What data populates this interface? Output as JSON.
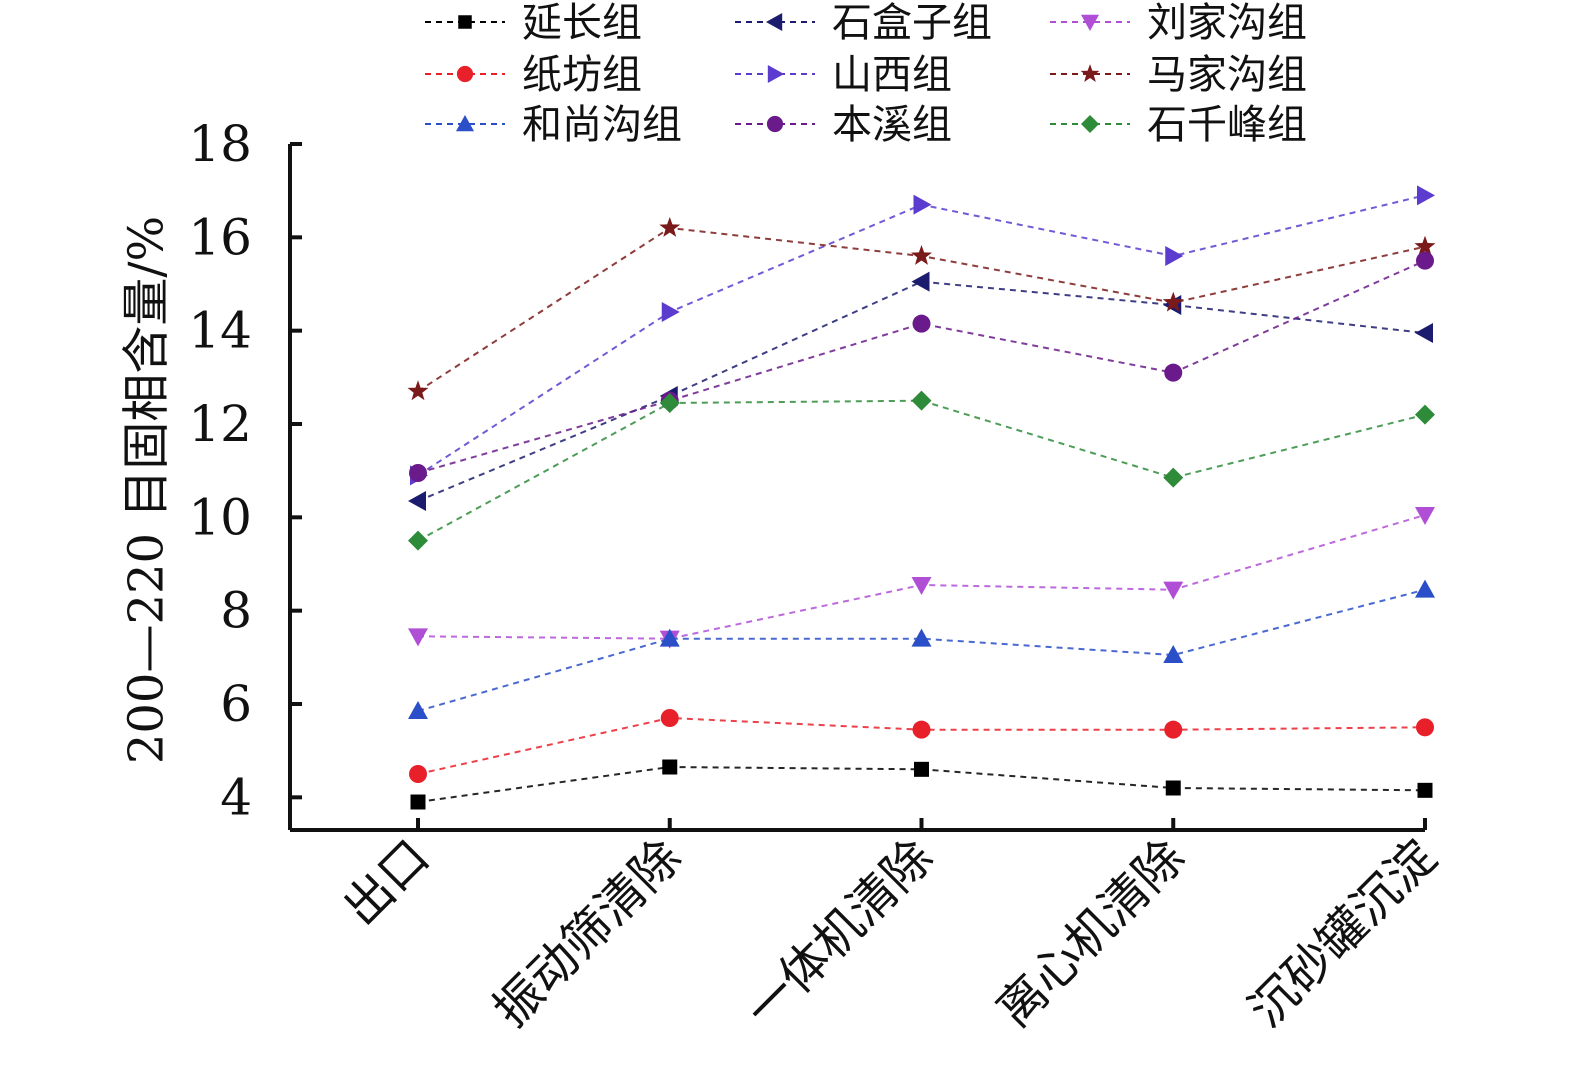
{
  "chart_data": {
    "type": "line",
    "title": "",
    "xlabel": "",
    "ylabel": "200—220 目固相含量/%",
    "categories": [
      "出口",
      "振动筛清除",
      "一体机清除",
      "离心机清除",
      "沉砂罐沉淀"
    ],
    "ylim": [
      3.3,
      18
    ],
    "yticks": [
      4,
      6,
      8,
      10,
      12,
      14,
      16,
      18
    ],
    "grid": false,
    "legend_position": "top",
    "series": [
      {
        "name": "延长组",
        "color": "#000000",
        "marker": "square",
        "values": [
          3.9,
          4.65,
          4.6,
          4.2,
          4.15
        ]
      },
      {
        "name": "石盒子组",
        "color": "#1c1c6e",
        "marker": "triangle-left",
        "values": [
          10.35,
          12.6,
          15.05,
          14.55,
          13.95
        ]
      },
      {
        "name": "刘家沟组",
        "color": "#b04fd6",
        "marker": "triangle-down",
        "values": [
          7.45,
          7.4,
          8.55,
          8.45,
          10.05
        ]
      },
      {
        "name": "纸坊组",
        "color": "#e8202a",
        "marker": "circle",
        "values": [
          4.5,
          5.7,
          5.45,
          5.45,
          5.5
        ]
      },
      {
        "name": "山西组",
        "color": "#5b3ccf",
        "marker": "triangle-right",
        "values": [
          10.9,
          14.4,
          16.7,
          15.6,
          16.9
        ]
      },
      {
        "name": "马家沟组",
        "color": "#7a1a1a",
        "marker": "star",
        "values": [
          12.7,
          16.2,
          15.6,
          14.6,
          15.8
        ]
      },
      {
        "name": "和尚沟组",
        "color": "#2a4fc8",
        "marker": "triangle-up",
        "values": [
          5.85,
          7.4,
          7.4,
          7.05,
          8.45
        ]
      },
      {
        "name": "本溪组",
        "color": "#6a1a8a",
        "marker": "circle",
        "values": [
          10.95,
          12.5,
          14.15,
          13.1,
          15.5
        ]
      },
      {
        "name": "石千峰组",
        "color": "#2e8b3a",
        "marker": "diamond",
        "values": [
          9.5,
          12.45,
          12.5,
          10.85,
          12.2
        ]
      }
    ]
  }
}
